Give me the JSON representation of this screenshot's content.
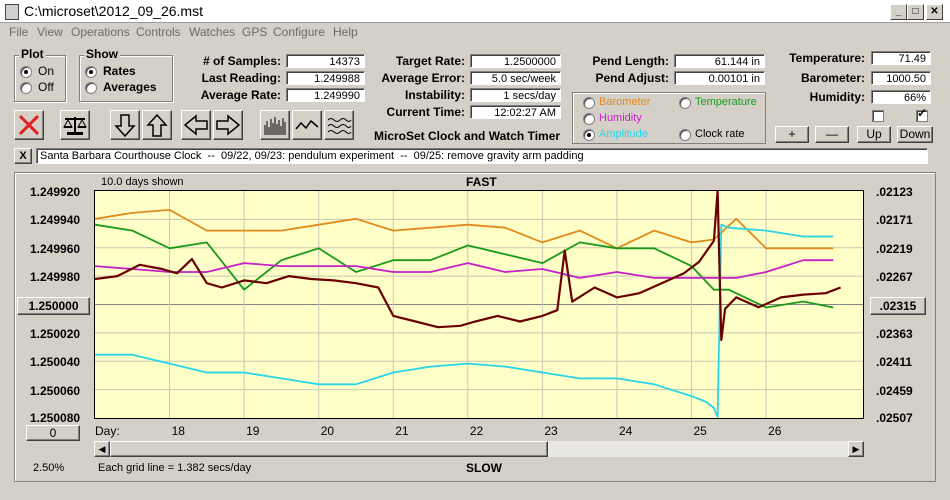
{
  "window": {
    "title": "C:\\microset\\2012_09_26.mst"
  },
  "menu": [
    "File",
    "View",
    "Operations",
    "Controls",
    "Watches",
    "GPS",
    "Configure",
    "Help"
  ],
  "plot_group": {
    "title": "Plot",
    "on": "On",
    "off": "Off",
    "selected": "On"
  },
  "show_group": {
    "title": "Show",
    "rates": "Rates",
    "averages": "Averages",
    "selected": "Rates"
  },
  "stats": {
    "samples_label": "# of Samples:",
    "samples": "14373",
    "last_label": "Last Reading:",
    "last": "1.249988",
    "avg_rate_label": "Average Rate:",
    "avg_rate": "1.249990",
    "target_label": "Target Rate:",
    "target": "1.2500000",
    "avg_err_label": "Average Error:",
    "avg_err": "5.0 sec/week",
    "instab_label": "Instability:",
    "instab": "1 secs/day",
    "time_label": "Current Time:",
    "time": "12:02:27 AM",
    "pend_len_label": "Pend Length:",
    "pend_len": "61.144 in",
    "pend_adj_label": "Pend Adjust:",
    "pend_adj": "0.00101 in",
    "temp_label": "Temperature:",
    "temp": "71.49",
    "baro_label": "Barometer:",
    "baro": "1000.50",
    "hum_label": "Humidity:",
    "hum": "66%"
  },
  "sensors": {
    "barometer": "Barometer",
    "temperature": "Temperature",
    "humidity": "Humidity",
    "amplitude": "Amplitude",
    "clockrate": "Clock rate",
    "selected": "Amplitude",
    "colors": {
      "barometer": "#e08a1e",
      "temperature": "#1a9a1a",
      "humidity": "#c81ec8",
      "amplitude": "#2ad4e8",
      "clockrate": "#000000"
    }
  },
  "adjust_buttons": {
    "plus": "+",
    "minus": "—",
    "up": "Up",
    "down": "Down"
  },
  "app_heading": "MicroSet Clock and Watch Timer",
  "notes": {
    "close": "X",
    "text": "Santa Barbara Courthouse Clock  --  09/22, 09/23: pendulum experiment  --  09/25: remove gravity arm padding"
  },
  "graph": {
    "days_shown": "10.0 days shown",
    "fast": "FAST",
    "slow": "SLOW",
    "left_ticks": [
      "1.249920",
      "1.249940",
      "1.249960",
      "1.249980",
      "1.250000",
      "1.250020",
      "1.250040",
      "1.250060",
      "1.250080"
    ],
    "left_center_btn": "1.250000",
    "right_ticks": [
      ".02123",
      ".02171",
      ".02219",
      ".02267",
      ".02315",
      ".02363",
      ".02411",
      ".02459",
      ".02507"
    ],
    "right_center_btn": ".02315",
    "day_label": "Day:",
    "days": [
      "18",
      "19",
      "20",
      "21",
      "22",
      "23",
      "24",
      "25",
      "26"
    ],
    "zero_btn": "0",
    "percent": "2.50%",
    "grid_note": "Each grid line = 1.382 secs/day"
  },
  "chart_data": {
    "type": "line",
    "x_label": "Day",
    "xlim": [
      17,
      27.3
    ],
    "ylim_left": [
      1.24992,
      1.25008
    ],
    "ylim_right": [
      0.02123,
      0.02507
    ],
    "series": [
      {
        "name": "Clock rate",
        "axis": "left",
        "color": "#6b0000",
        "x": [
          17,
          17.3,
          17.6,
          17.9,
          18.1,
          18.3,
          18.5,
          18.7,
          19,
          19.3,
          19.6,
          19.9,
          20.2,
          20.5,
          20.8,
          21,
          21.3,
          21.6,
          21.9,
          22.1,
          22.4,
          22.7,
          23,
          23.2,
          23.3,
          23.4,
          23.7,
          24,
          24.3,
          24.6,
          24.9,
          25.1,
          25.3,
          25.35,
          25.4,
          25.45,
          25.6,
          25.9,
          26.2,
          26.5,
          26.8,
          27
        ],
        "y": [
          1.249982,
          1.24998,
          1.249972,
          1.249975,
          1.249978,
          1.249968,
          1.249985,
          1.249988,
          1.249983,
          1.249985,
          1.24998,
          1.249982,
          1.249983,
          1.249985,
          1.249988,
          1.250008,
          1.250012,
          1.250016,
          1.250015,
          1.250012,
          1.250008,
          1.250012,
          1.250008,
          1.250004,
          1.249962,
          1.249998,
          1.249988,
          1.249995,
          1.249992,
          1.249985,
          1.249978,
          1.24997,
          1.249955,
          1.24992,
          1.250025,
          1.250003,
          1.249995,
          1.250002,
          1.249995,
          1.249993,
          1.249992,
          1.249988
        ]
      },
      {
        "name": "Barometer",
        "axis": "right",
        "color": "#e08a1e",
        "x": [
          17,
          17.5,
          18,
          18.5,
          19,
          19.5,
          20,
          20.5,
          21,
          21.5,
          22,
          22.5,
          23,
          23.5,
          24,
          24.5,
          25,
          25.3,
          25.6,
          26,
          26.5,
          26.9
        ],
        "y": [
          0.0217,
          0.0216,
          0.02155,
          0.0219,
          0.0219,
          0.0219,
          0.0218,
          0.0217,
          0.0219,
          0.02185,
          0.0218,
          0.02185,
          0.0221,
          0.0219,
          0.0222,
          0.0219,
          0.0221,
          0.02205,
          0.0217,
          0.0222,
          0.0222,
          0.0222
        ]
      },
      {
        "name": "Temperature",
        "axis": "right",
        "color": "#1a9a1a",
        "x": [
          17,
          17.5,
          18,
          18.5,
          19,
          19.5,
          20,
          20.5,
          21,
          21.5,
          22,
          22.5,
          23,
          23.5,
          24,
          24.5,
          25,
          25.3,
          25.5,
          26,
          26.5,
          26.9
        ],
        "y": [
          0.0218,
          0.0219,
          0.0222,
          0.0221,
          0.0229,
          0.0224,
          0.0222,
          0.0226,
          0.0224,
          0.0224,
          0.02215,
          0.0223,
          0.02245,
          0.0221,
          0.0222,
          0.0222,
          0.0225,
          0.0229,
          0.0229,
          0.0232,
          0.0231,
          0.0232
        ]
      },
      {
        "name": "Humidity",
        "axis": "right",
        "color": "#c81ec8",
        "x": [
          17,
          17.5,
          18,
          18.5,
          19,
          19.5,
          20,
          20.5,
          21,
          21.5,
          22,
          22.5,
          23,
          23.5,
          24,
          24.5,
          25,
          25.3,
          25.6,
          26,
          26.5,
          26.9
        ],
        "y": [
          0.0225,
          0.02255,
          0.0226,
          0.0226,
          0.02245,
          0.0225,
          0.0225,
          0.0225,
          0.0226,
          0.0226,
          0.02245,
          0.0226,
          0.02255,
          0.0227,
          0.0226,
          0.0227,
          0.0227,
          0.0227,
          0.0227,
          0.0226,
          0.0224,
          0.0224
        ]
      },
      {
        "name": "Amplitude",
        "axis": "right",
        "color": "#2ad4e8",
        "x": [
          17,
          17.5,
          18,
          18.5,
          19,
          19.5,
          20,
          20.5,
          21,
          21.5,
          22,
          22.5,
          23,
          23.5,
          24,
          24.5,
          25,
          25.2,
          25.3,
          25.35,
          25.4,
          25.5,
          26,
          26.5,
          26.9
        ],
        "y": [
          0.024,
          0.024,
          0.02415,
          0.0243,
          0.0243,
          0.0244,
          0.0245,
          0.0245,
          0.0243,
          0.0242,
          0.02415,
          0.0242,
          0.0243,
          0.0244,
          0.0244,
          0.0245,
          0.0247,
          0.0248,
          0.0249,
          0.02505,
          0.0218,
          0.02185,
          0.0219,
          0.022,
          0.022
        ]
      }
    ]
  }
}
